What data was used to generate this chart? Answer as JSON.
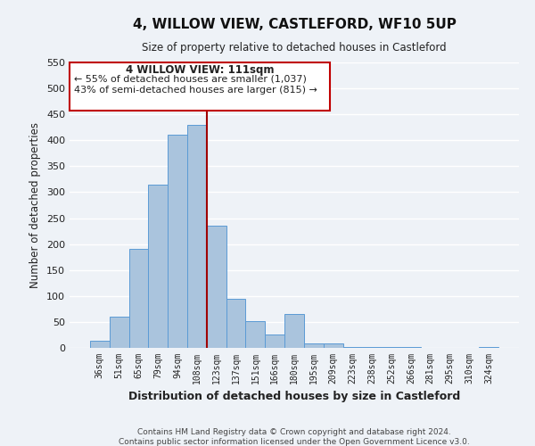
{
  "title": "4, WILLOW VIEW, CASTLEFORD, WF10 5UP",
  "subtitle": "Size of property relative to detached houses in Castleford",
  "xlabel": "Distribution of detached houses by size in Castleford",
  "ylabel": "Number of detached properties",
  "bar_labels": [
    "36sqm",
    "51sqm",
    "65sqm",
    "79sqm",
    "94sqm",
    "108sqm",
    "123sqm",
    "137sqm",
    "151sqm",
    "166sqm",
    "180sqm",
    "195sqm",
    "209sqm",
    "223sqm",
    "238sqm",
    "252sqm",
    "266sqm",
    "281sqm",
    "295sqm",
    "310sqm",
    "324sqm"
  ],
  "bar_values": [
    13,
    60,
    190,
    315,
    410,
    430,
    235,
    95,
    52,
    25,
    65,
    8,
    8,
    2,
    2,
    2,
    2,
    0,
    0,
    0,
    2
  ],
  "bar_color": "#aac4dd",
  "bar_edge_color": "#5b9bd5",
  "ylim": [
    0,
    550
  ],
  "yticks": [
    0,
    50,
    100,
    150,
    200,
    250,
    300,
    350,
    400,
    450,
    500,
    550
  ],
  "property_line_x": 5.5,
  "property_line_color": "#a00000",
  "annotation_title": "4 WILLOW VIEW: 111sqm",
  "annotation_line1": "← 55% of detached houses are smaller (1,037)",
  "annotation_line2": "43% of semi-detached houses are larger (815) →",
  "annotation_box_color": "#c00000",
  "footer1": "Contains HM Land Registry data © Crown copyright and database right 2024.",
  "footer2": "Contains public sector information licensed under the Open Government Licence v3.0.",
  "background_color": "#eef2f7",
  "grid_color": "#ffffff"
}
